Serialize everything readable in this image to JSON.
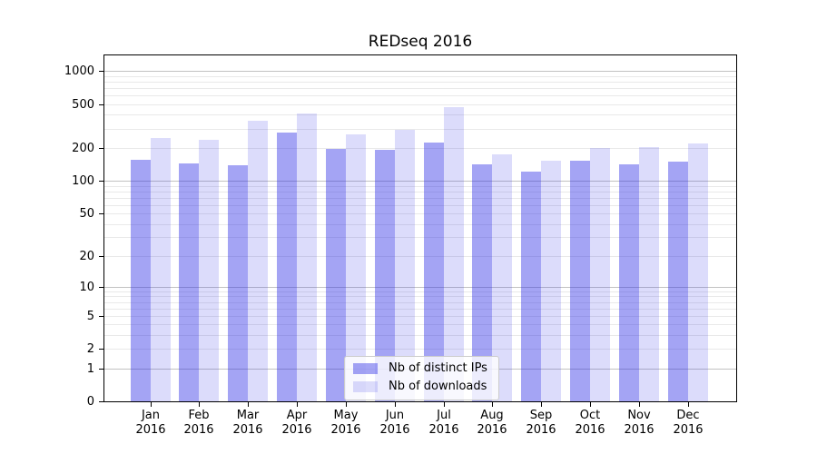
{
  "chart_data": {
    "type": "bar",
    "title": "REDseq 2016",
    "categories": [
      "Jan 2016",
      "Feb 2016",
      "Mar 2016",
      "Apr 2016",
      "May 2016",
      "Jun 2016",
      "Jul 2016",
      "Aug 2016",
      "Sep 2016",
      "Oct 2016",
      "Nov 2016",
      "Dec 2016"
    ],
    "series": [
      {
        "name": "Nb of distinct IPs",
        "values": [
          155,
          143,
          138,
          278,
          196,
          192,
          222,
          142,
          121,
          154,
          141,
          151
        ],
        "fill": "rgba(45,45,230,0.43)"
      },
      {
        "name": "Nb of downloads",
        "values": [
          245,
          238,
          355,
          410,
          268,
          290,
          472,
          176,
          152,
          201,
          203,
          219
        ],
        "fill": "rgba(45,45,230,0.165)"
      }
    ],
    "xlabel": "",
    "ylabel": "",
    "yscale": "log1p",
    "ylim": [
      0,
      1390
    ],
    "y_tick_values": [
      0,
      1,
      2,
      5,
      10,
      20,
      50,
      100,
      200,
      500,
      1000
    ],
    "grid": {
      "visible": true,
      "major_values": [
        1,
        10,
        100,
        1000
      ],
      "major_color": "#c2c2c2",
      "minor_color": "#e9e9e9"
    },
    "legend_position": "lower center"
  },
  "colors": {
    "background": "#ffffff",
    "axis": "#000000",
    "text": "#000000"
  }
}
